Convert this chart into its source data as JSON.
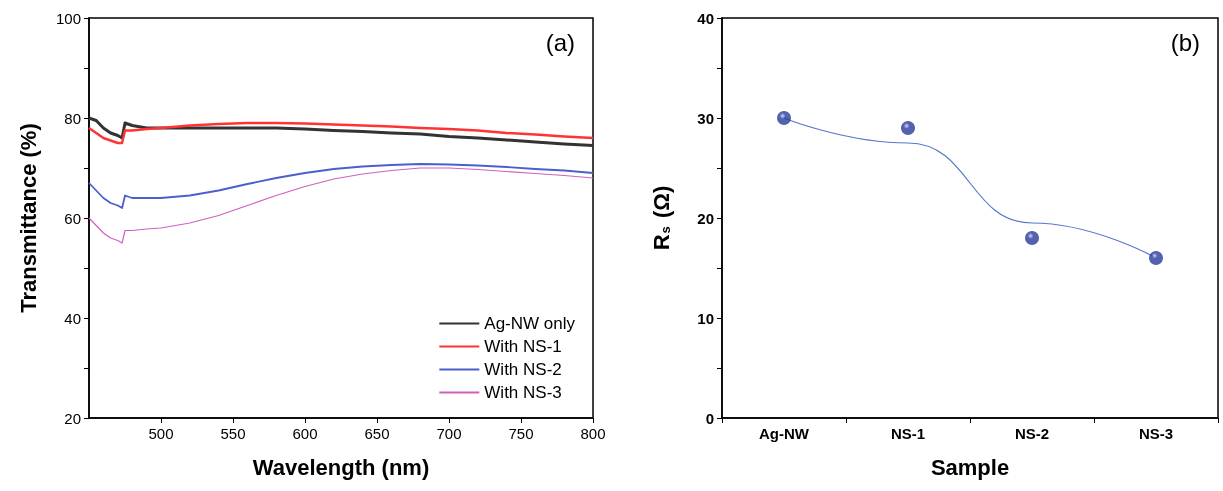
{
  "chart_data": [
    {
      "type": "line",
      "xlabel": "Wavelength (nm)",
      "ylabel": "Transmittance (%)",
      "annotations": [
        "(a)"
      ],
      "legend": "bottom right",
      "xlim": [
        450,
        800
      ],
      "xticks": [
        500,
        550,
        600,
        650,
        700,
        750,
        800
      ],
      "ylim": [
        20,
        100
      ],
      "yticks": [
        20,
        {
          "value": 30,
          "label": null
        },
        40,
        {
          "value": 50,
          "label": null
        },
        60,
        {
          "value": 70,
          "label": null
        },
        80,
        {
          "value": 90,
          "label": null
        },
        100
      ],
      "x": [
        450,
        455,
        460,
        465,
        470,
        473,
        475,
        480,
        490,
        500,
        520,
        540,
        560,
        580,
        600,
        620,
        640,
        660,
        680,
        700,
        720,
        740,
        760,
        780,
        800
      ],
      "series": [
        {
          "name": "Ag-NW only",
          "color": "#333333",
          "values": [
            80,
            79.5,
            78,
            77,
            76.5,
            76,
            79,
            78.5,
            78,
            78,
            78,
            78,
            78,
            78,
            77.8,
            77.5,
            77.3,
            77,
            76.8,
            76.3,
            76,
            75.6,
            75.2,
            74.8,
            74.5
          ]
        },
        {
          "name": "With NS-1",
          "color": "#ff3333",
          "values": [
            78,
            77,
            76,
            75.5,
            75,
            75,
            77.5,
            77.5,
            77.8,
            78,
            78.5,
            78.8,
            79,
            79,
            78.9,
            78.7,
            78.5,
            78.3,
            78,
            77.8,
            77.5,
            77,
            76.7,
            76.3,
            76
          ]
        },
        {
          "name": "With NS-2",
          "color": "#4b5fcc",
          "values": [
            67,
            65.5,
            64,
            63,
            62.5,
            62,
            64.5,
            64,
            64,
            64,
            64.5,
            65.5,
            66.8,
            68,
            69,
            69.8,
            70.3,
            70.6,
            70.8,
            70.7,
            70.5,
            70.2,
            69.8,
            69.5,
            69
          ]
        },
        {
          "name": "With NS-3",
          "color": "#d060c0",
          "values": [
            60,
            58.5,
            57,
            56,
            55.5,
            55,
            57.5,
            57.5,
            57.8,
            58,
            59,
            60.5,
            62.5,
            64.5,
            66.3,
            67.8,
            68.8,
            69.5,
            70,
            70,
            69.7,
            69.3,
            68.9,
            68.5,
            68
          ]
        }
      ]
    },
    {
      "type": "scatter",
      "xlabel": "Sample",
      "ylabel": "R$_{s}$ (Ω)",
      "annotations": [
        "(b)"
      ],
      "categories": [
        "Ag-NW",
        "NS-1",
        "NS-2",
        "NS-3"
      ],
      "ylim": [
        0,
        40
      ],
      "yticks": [
        0,
        {
          "value": 5,
          "label": null
        },
        10,
        {
          "value": 15,
          "label": null
        },
        20,
        {
          "value": 25,
          "label": null
        },
        30,
        {
          "value": 35,
          "label": null
        },
        40
      ],
      "series": [
        {
          "type": "scatter",
          "marker": "circle",
          "color": "#2a3a9a",
          "values": [
            30,
            29,
            18,
            16
          ]
        },
        {
          "type": "line",
          "marker": "none",
          "color": "#5577cc",
          "x": [
            "Ag-NW",
            "NS-1",
            "NS-2",
            "NS-3"
          ],
          "values": [
            30,
            27.5,
            19.5,
            16
          ]
        }
      ]
    }
  ]
}
